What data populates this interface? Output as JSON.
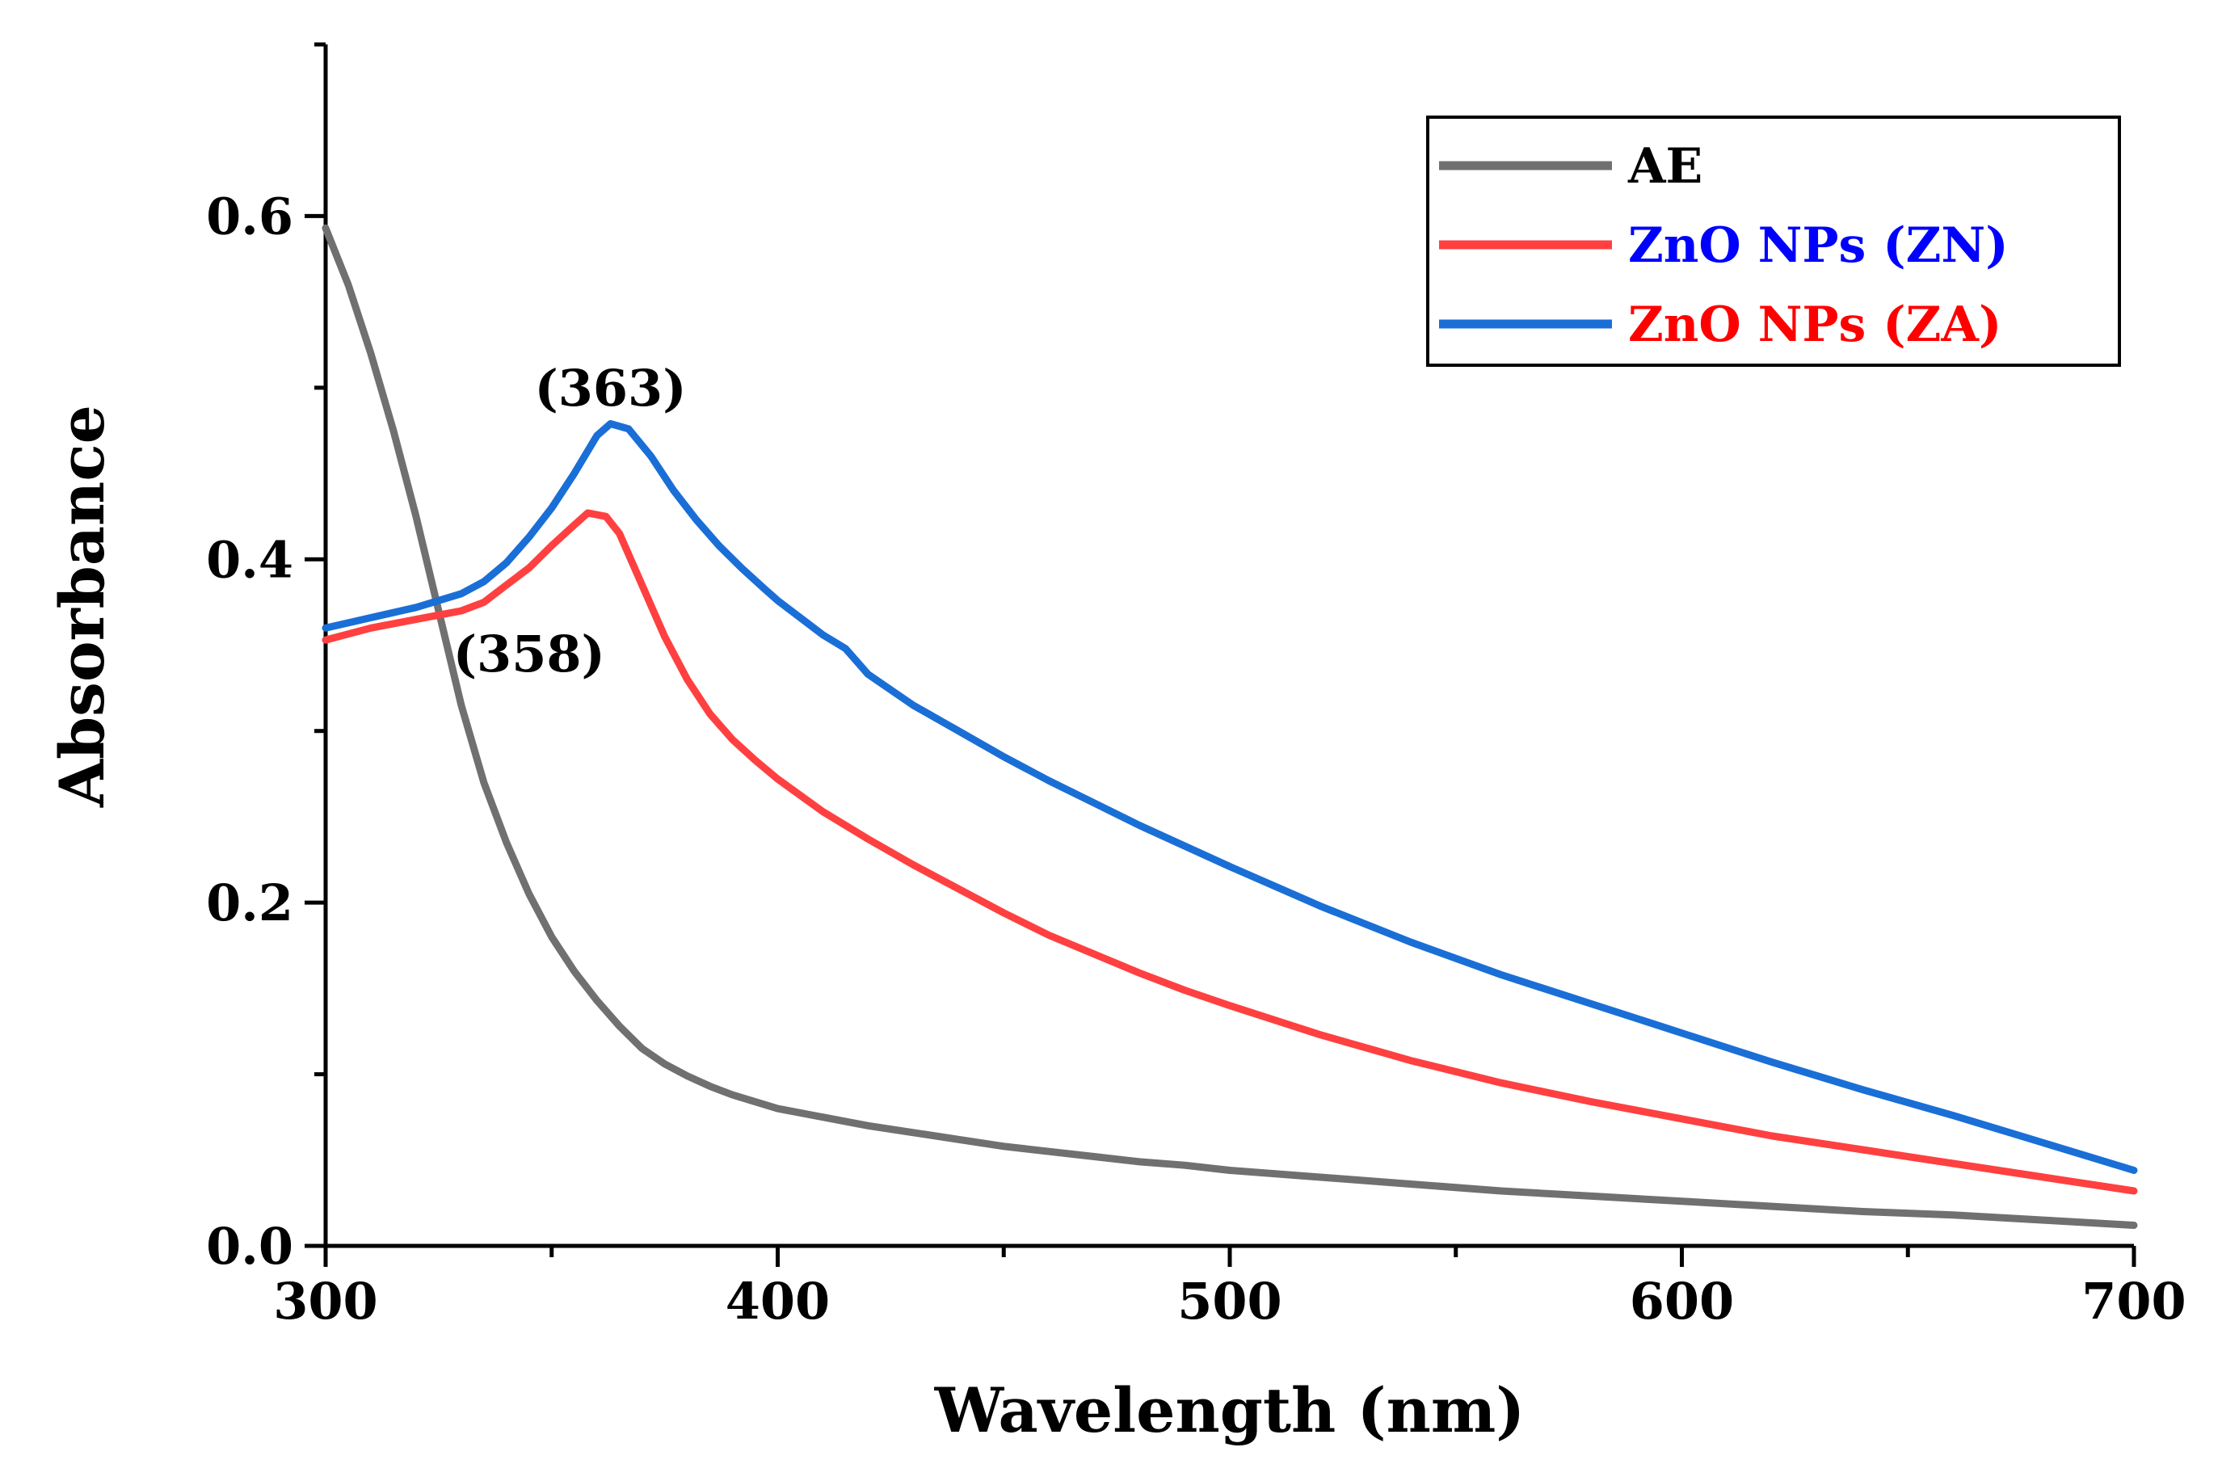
{
  "chart_data": {
    "type": "line",
    "xlabel": "Wavelength (nm)",
    "ylabel": "Absorbance",
    "xlim": [
      300,
      700
    ],
    "ylim": [
      0.0,
      0.7
    ],
    "x_ticks": [
      300,
      400,
      500,
      600,
      700
    ],
    "x_tick_labels": [
      "300",
      "400",
      "500",
      "600",
      "700"
    ],
    "y_ticks": [
      0.0,
      0.2,
      0.4,
      0.6
    ],
    "y_tick_labels": [
      "0.0",
      "0.2",
      "0.4",
      "0.6"
    ],
    "grid": false,
    "legend_position": "top-right",
    "legend": [
      {
        "label": "AE",
        "line_color": "#707070",
        "text_color": "#000000"
      },
      {
        "label": "ZnO NPs (ZN)",
        "line_color": "#ff4040",
        "text_color": "#0000ff"
      },
      {
        "label": "ZnO NPs (ZA)",
        "line_color": "#1a6fd6",
        "text_color": "#ff0000"
      }
    ],
    "annotations": [
      {
        "text": "(363)",
        "x": 363,
        "y": 0.5
      },
      {
        "text": "(358)",
        "x": 345,
        "y": 0.345
      }
    ],
    "series": [
      {
        "color": "#707070",
        "points": [
          [
            300,
            0.593
          ],
          [
            305,
            0.56
          ],
          [
            310,
            0.52
          ],
          [
            315,
            0.475
          ],
          [
            320,
            0.425
          ],
          [
            325,
            0.37
          ],
          [
            330,
            0.315
          ],
          [
            335,
            0.27
          ],
          [
            340,
            0.235
          ],
          [
            345,
            0.205
          ],
          [
            350,
            0.18
          ],
          [
            355,
            0.16
          ],
          [
            360,
            0.143
          ],
          [
            365,
            0.128
          ],
          [
            370,
            0.115
          ],
          [
            375,
            0.106
          ],
          [
            380,
            0.099
          ],
          [
            385,
            0.093
          ],
          [
            390,
            0.088
          ],
          [
            395,
            0.084
          ],
          [
            400,
            0.08
          ],
          [
            410,
            0.075
          ],
          [
            420,
            0.07
          ],
          [
            430,
            0.066
          ],
          [
            440,
            0.062
          ],
          [
            450,
            0.058
          ],
          [
            460,
            0.055
          ],
          [
            470,
            0.052
          ],
          [
            480,
            0.049
          ],
          [
            490,
            0.047
          ],
          [
            500,
            0.044
          ],
          [
            520,
            0.04
          ],
          [
            540,
            0.036
          ],
          [
            560,
            0.032
          ],
          [
            580,
            0.029
          ],
          [
            600,
            0.026
          ],
          [
            620,
            0.023
          ],
          [
            640,
            0.02
          ],
          [
            660,
            0.018
          ],
          [
            680,
            0.015
          ],
          [
            700,
            0.012
          ]
        ]
      },
      {
        "color": "#ff4040",
        "points": [
          [
            300,
            0.353
          ],
          [
            310,
            0.36
          ],
          [
            320,
            0.365
          ],
          [
            330,
            0.37
          ],
          [
            335,
            0.375
          ],
          [
            340,
            0.385
          ],
          [
            345,
            0.395
          ],
          [
            350,
            0.408
          ],
          [
            355,
            0.42
          ],
          [
            358,
            0.427
          ],
          [
            362,
            0.425
          ],
          [
            365,
            0.415
          ],
          [
            370,
            0.385
          ],
          [
            375,
            0.355
          ],
          [
            380,
            0.33
          ],
          [
            385,
            0.31
          ],
          [
            390,
            0.295
          ],
          [
            395,
            0.283
          ],
          [
            400,
            0.272
          ],
          [
            410,
            0.253
          ],
          [
            420,
            0.237
          ],
          [
            430,
            0.222
          ],
          [
            440,
            0.208
          ],
          [
            450,
            0.194
          ],
          [
            460,
            0.181
          ],
          [
            470,
            0.17
          ],
          [
            480,
            0.159
          ],
          [
            490,
            0.149
          ],
          [
            500,
            0.14
          ],
          [
            520,
            0.123
          ],
          [
            540,
            0.108
          ],
          [
            560,
            0.095
          ],
          [
            580,
            0.084
          ],
          [
            600,
            0.074
          ],
          [
            620,
            0.064
          ],
          [
            640,
            0.056
          ],
          [
            660,
            0.048
          ],
          [
            680,
            0.04
          ],
          [
            700,
            0.032
          ]
        ]
      },
      {
        "color": "#1a6fd6",
        "points": [
          [
            300,
            0.36
          ],
          [
            310,
            0.366
          ],
          [
            320,
            0.372
          ],
          [
            330,
            0.38
          ],
          [
            335,
            0.387
          ],
          [
            340,
            0.398
          ],
          [
            345,
            0.413
          ],
          [
            350,
            0.43
          ],
          [
            355,
            0.45
          ],
          [
            360,
            0.472
          ],
          [
            363,
            0.479
          ],
          [
            367,
            0.476
          ],
          [
            372,
            0.46
          ],
          [
            377,
            0.44
          ],
          [
            382,
            0.423
          ],
          [
            387,
            0.408
          ],
          [
            392,
            0.395
          ],
          [
            397,
            0.383
          ],
          [
            400,
            0.376
          ],
          [
            410,
            0.356
          ],
          [
            415,
            0.348
          ],
          [
            420,
            0.333
          ],
          [
            430,
            0.315
          ],
          [
            440,
            0.3
          ],
          [
            450,
            0.285
          ],
          [
            460,
            0.271
          ],
          [
            470,
            0.258
          ],
          [
            480,
            0.245
          ],
          [
            490,
            0.233
          ],
          [
            500,
            0.221
          ],
          [
            520,
            0.198
          ],
          [
            540,
            0.177
          ],
          [
            560,
            0.158
          ],
          [
            580,
            0.141
          ],
          [
            600,
            0.124
          ],
          [
            620,
            0.107
          ],
          [
            640,
            0.091
          ],
          [
            660,
            0.076
          ],
          [
            680,
            0.06
          ],
          [
            700,
            0.044
          ]
        ]
      }
    ]
  }
}
